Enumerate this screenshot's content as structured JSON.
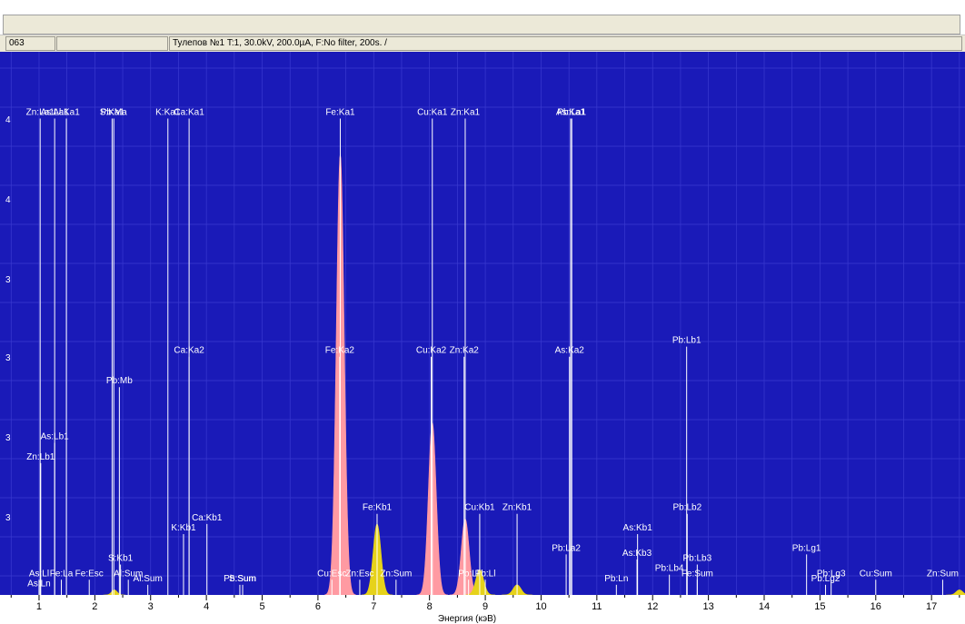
{
  "status": {
    "cell1": "063",
    "cell2": "",
    "cell3": "Тулепов №1  T:1, 30.0kV, 200.0µA, F:No filter, 200s. /"
  },
  "colors": {
    "plot_bg": "#1a1ab8",
    "grid": "#3a3ad0",
    "line_marker": "#ffffff",
    "peak_pink": "#ff9aa2",
    "peak_yellow": "#e6d21a"
  },
  "chart_data": {
    "type": "area",
    "xlabel": "Энергия (кэВ)",
    "xlim": [
      0.3,
      17.6
    ],
    "xticks": [
      1,
      2,
      3,
      4,
      5,
      6,
      7,
      8,
      9,
      10,
      11,
      12,
      13,
      14,
      15,
      16,
      17
    ],
    "y_tick_labels": [
      "4",
      "4",
      "3",
      "3",
      "3",
      "3"
    ],
    "ylim": [
      0,
      100
    ],
    "grid": true,
    "series": [
      {
        "color": "#ff9aa2",
        "peaks": [
          {
            "x": 6.4,
            "y": 87,
            "width": 0.07
          },
          {
            "x": 8.05,
            "y": 34,
            "width": 0.07
          },
          {
            "x": 8.64,
            "y": 15,
            "width": 0.07
          }
        ]
      },
      {
        "color": "#e6d21a",
        "peaks": [
          {
            "x": 7.06,
            "y": 14,
            "width": 0.07
          },
          {
            "x": 8.9,
            "y": 5,
            "width": 0.07
          },
          {
            "x": 9.57,
            "y": 2,
            "width": 0.07
          },
          {
            "x": 2.35,
            "y": 1,
            "width": 0.05
          },
          {
            "x": 17.5,
            "y": 1,
            "width": 0.06
          }
        ]
      }
    ],
    "markers": [
      {
        "x": 1.02,
        "h": 94,
        "label": "Zn:La1"
      },
      {
        "x": 1.28,
        "h": 94,
        "label": "As:La1"
      },
      {
        "x": 1.49,
        "h": 94,
        "label": "Al:Ka1"
      },
      {
        "x": 2.31,
        "h": 94,
        "label": "S:Ka1"
      },
      {
        "x": 2.34,
        "h": 94,
        "label": "Pb:Ma"
      },
      {
        "x": 3.31,
        "h": 94,
        "label": "K:Ka1"
      },
      {
        "x": 3.69,
        "h": 94,
        "label": "Ca:Ka1"
      },
      {
        "x": 6.4,
        "h": 94,
        "label": "Fe:Ka1"
      },
      {
        "x": 8.05,
        "h": 94,
        "label": "Cu:Ka1"
      },
      {
        "x": 8.64,
        "h": 94,
        "label": "Zn:Ka1"
      },
      {
        "x": 10.53,
        "h": 94,
        "label": "As:Ka1"
      },
      {
        "x": 10.55,
        "h": 94,
        "label": "Pb:La1"
      },
      {
        "x": 3.69,
        "h": 47,
        "label": "Ca:Ka2"
      },
      {
        "x": 6.39,
        "h": 47,
        "label": "Fe:Ka2"
      },
      {
        "x": 8.03,
        "h": 47,
        "label": "Cu:Ka2"
      },
      {
        "x": 8.62,
        "h": 47,
        "label": "Zn:Ka2"
      },
      {
        "x": 10.51,
        "h": 47,
        "label": "As:Ka2"
      },
      {
        "x": 2.44,
        "h": 41,
        "label": "Pb:Mb"
      },
      {
        "x": 12.61,
        "h": 49,
        "label": "Pb:Lb1"
      },
      {
        "x": 1.28,
        "h": 30,
        "label": "As:Lb1"
      },
      {
        "x": 1.03,
        "h": 26,
        "label": "Zn:Lb1"
      },
      {
        "x": 7.06,
        "h": 16,
        "label": "Fe:Kb1"
      },
      {
        "x": 8.9,
        "h": 16,
        "label": "Cu:Kb1"
      },
      {
        "x": 9.57,
        "h": 16,
        "label": "Zn:Kb1"
      },
      {
        "x": 12.62,
        "h": 16,
        "label": "Pb:Lb2"
      },
      {
        "x": 4.01,
        "h": 14,
        "label": "Ca:Kb1"
      },
      {
        "x": 3.59,
        "h": 12,
        "label": "K:Kb1"
      },
      {
        "x": 11.73,
        "h": 12,
        "label": "As:Kb1"
      },
      {
        "x": 10.45,
        "h": 8,
        "label": "Pb:La2"
      },
      {
        "x": 11.72,
        "h": 7,
        "label": "As:Kb3"
      },
      {
        "x": 2.46,
        "h": 6,
        "label": "S:Kb1"
      },
      {
        "x": 12.8,
        "h": 6,
        "label": "Pb:Lb3"
      },
      {
        "x": 14.76,
        "h": 8,
        "label": "Pb:Lg1"
      },
      {
        "x": 12.3,
        "h": 4,
        "label": "Pb:Lb4"
      },
      {
        "x": 12.8,
        "h": 3,
        "label": "Fe:Sum"
      },
      {
        "x": 11.35,
        "h": 2,
        "label": "Pb:Ln"
      },
      {
        "x": 15.2,
        "h": 3,
        "label": "Pb:Lg3"
      },
      {
        "x": 15.1,
        "h": 2,
        "label": "Pb:Lg2"
      },
      {
        "x": 16.0,
        "h": 3,
        "label": "Cu:Sum"
      },
      {
        "x": 17.2,
        "h": 3,
        "label": "Zn:Sum"
      },
      {
        "x": 4.6,
        "h": 2,
        "label": "Pb:Sum"
      },
      {
        "x": 4.65,
        "h": 2,
        "label": "S:Sum"
      },
      {
        "x": 7.4,
        "h": 3,
        "label": "Zn:Sum"
      },
      {
        "x": 6.25,
        "h": 3,
        "label": "Cu:Esc"
      },
      {
        "x": 6.75,
        "h": 3,
        "label": "Zn:Esc"
      },
      {
        "x": 8.7,
        "h": 3,
        "label": "Pb:Ll"
      },
      {
        "x": 9.0,
        "h": 3,
        "label": "Pb:Ll"
      },
      {
        "x": 1.0,
        "h": 3,
        "label": "As:Ll"
      },
      {
        "x": 1.0,
        "h": 1,
        "label": "As:Ln"
      },
      {
        "x": 1.4,
        "h": 3,
        "label": "Fe:La"
      },
      {
        "x": 1.9,
        "h": 3,
        "label": "Fe:Esc"
      },
      {
        "x": 2.6,
        "h": 3,
        "label": "Al:Sum"
      },
      {
        "x": 2.95,
        "h": 2,
        "label": "Al:Sum"
      }
    ]
  }
}
